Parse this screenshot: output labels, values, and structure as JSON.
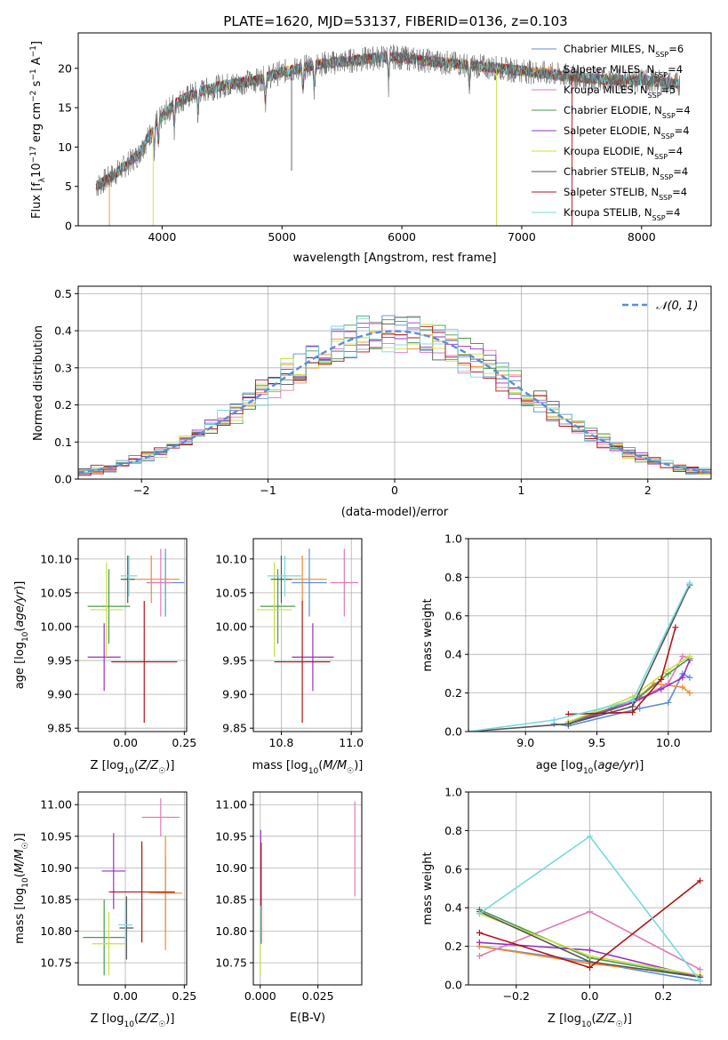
{
  "title": "PLATE=1620, MJD=53137, FIBERID=0136, z=0.103",
  "colors": {
    "Chabrier MILES": "#5b8ed6",
    "Salpeter MILES": "#f08a2c",
    "Kroupa MILES": "#e07ab8",
    "Chabrier ELODIE": "#4a9a4a",
    "Salpeter ELODIE": "#9a2ec0",
    "Kroupa ELODIE": "#c8e040",
    "Chabrier STELIB": "#555555",
    "Salpeter STELIB": "#b01515",
    "Kroupa STELIB": "#78d8e0"
  },
  "chart_data": [
    {
      "type": "line",
      "id": "spectrum",
      "title": "PLATE=1620, MJD=53137, FIBERID=0136, z=0.103",
      "xlabel": "wavelength [Angstrom, rest frame]",
      "ylabel": "Flux [f_λ 10^-17 erg cm^-2 s^-1 A^-1]",
      "xlim": [
        3300,
        8580
      ],
      "ylim": [
        0,
        24.5
      ],
      "xticks": [
        "4000",
        "5000",
        "6000",
        "7000",
        "8000"
      ],
      "yticks": [
        "0",
        "5",
        "10",
        "15",
        "20"
      ],
      "legend_position": "right",
      "legend": [
        {
          "base": "Chabrier MILES, N",
          "sub": "SSP",
          "val": "=6"
        },
        {
          "base": "Salpeter MILES, N",
          "sub": "SSP",
          "val": "=4"
        },
        {
          "base": "Kroupa MILES, N",
          "sub": "SSP",
          "val": "=5"
        },
        {
          "base": "Chabrier ELODIE, N",
          "sub": "SSP",
          "val": "=4"
        },
        {
          "base": "Salpeter ELODIE, N",
          "sub": "SSP",
          "val": "=4"
        },
        {
          "base": "Kroupa ELODIE, N",
          "sub": "SSP",
          "val": "=4"
        },
        {
          "base": "Chabrier STELIB, N",
          "sub": "SSP",
          "val": "=4"
        },
        {
          "base": "Salpeter STELIB, N",
          "sub": "SSP",
          "val": "=4"
        },
        {
          "base": "Kroupa STELIB, N",
          "sub": "SSP",
          "val": "=4"
        }
      ],
      "data_trace": {
        "x": [
          3450,
          3600,
          3800,
          3950,
          4100,
          4300,
          4500,
          4800,
          5000,
          5300,
          5600,
          5900,
          6200,
          6500,
          6800,
          7100,
          7400,
          7700,
          8000,
          8300
        ],
        "y": [
          5.0,
          6.5,
          9.0,
          13.0,
          15.5,
          17.0,
          17.8,
          18.5,
          19.5,
          20.5,
          21.0,
          21.5,
          21.0,
          20.5,
          20.0,
          19.5,
          19.0,
          18.5,
          18.5,
          18.0
        ]
      }
    },
    {
      "type": "histogram",
      "id": "residuals",
      "xlabel": "(data-model)/error",
      "ylabel": "Normed distribution",
      "xlim": [
        -2.5,
        2.5
      ],
      "ylim": [
        0,
        0.52
      ],
      "xticks": [
        "−2",
        "−1",
        "0",
        "1",
        "2"
      ],
      "yticks": [
        "0.0",
        "0.1",
        "0.2",
        "0.3",
        "0.4",
        "0.5"
      ],
      "legend": "𝒩(0, 1)",
      "legend_position": "top-right",
      "reference_curve": "N(0,1)",
      "bin_edges_start": -2.5,
      "bin_width": 0.1
    },
    {
      "type": "scatter",
      "id": "age_vs_Z",
      "xlabel": "Z [log10(Z/Z☉)]",
      "ylabel": "age [log10(age/yr)]",
      "xlim": [
        -0.2,
        0.26
      ],
      "ylim": [
        9.845,
        10.13
      ],
      "xticks": [
        "0.00",
        "0.25"
      ],
      "yticks": [
        "9.85",
        "9.90",
        "9.95",
        "10.00",
        "10.05",
        "10.10"
      ],
      "points": [
        {
          "model": "Chabrier MILES",
          "x": 0.17,
          "y": 10.065,
          "xerr": 0.08,
          "yerr": 0.05
        },
        {
          "model": "Salpeter MILES",
          "x": 0.11,
          "y": 10.07,
          "xerr": 0.12,
          "yerr": 0.035
        },
        {
          "model": "Kroupa MILES",
          "x": 0.15,
          "y": 10.065,
          "xerr": 0.05,
          "yerr": 0.05
        },
        {
          "model": "Chabrier ELODIE",
          "x": -0.07,
          "y": 10.03,
          "xerr": 0.09,
          "yerr": 0.055
        },
        {
          "model": "Salpeter ELODIE",
          "x": -0.09,
          "y": 9.955,
          "xerr": 0.07,
          "yerr": 0.05
        },
        {
          "model": "Kroupa ELODIE",
          "x": -0.08,
          "y": 10.025,
          "xerr": 0.07,
          "yerr": 0.07
        },
        {
          "model": "Chabrier STELIB",
          "x": 0.01,
          "y": 10.07,
          "xerr": 0.03,
          "yerr": 0.035
        },
        {
          "model": "Salpeter STELIB",
          "x": 0.08,
          "y": 9.948,
          "xerr": 0.14,
          "yerr": 0.09
        },
        {
          "model": "Kroupa STELIB",
          "x": 0.015,
          "y": 10.075,
          "xerr": 0.035,
          "yerr": 0.03
        }
      ]
    },
    {
      "type": "scatter",
      "id": "age_vs_mass",
      "xlabel": "mass [log10(M/M☉)]",
      "ylabel": "",
      "xlim": [
        10.72,
        11.03
      ],
      "ylim": [
        9.845,
        10.13
      ],
      "xticks": [
        "10.8",
        "11.0"
      ],
      "yticks": [
        "9.85",
        "9.90",
        "9.95",
        "10.00",
        "10.05",
        "10.10"
      ],
      "points": [
        {
          "model": "Chabrier MILES",
          "x": 10.88,
          "y": 10.065,
          "xerr": 0.05,
          "yerr": 0.05
        },
        {
          "model": "Salpeter MILES",
          "x": 10.86,
          "y": 10.07,
          "xerr": 0.07,
          "yerr": 0.035
        },
        {
          "model": "Kroupa MILES",
          "x": 10.98,
          "y": 10.065,
          "xerr": 0.04,
          "yerr": 0.05
        },
        {
          "model": "Chabrier ELODIE",
          "x": 10.79,
          "y": 10.03,
          "xerr": 0.05,
          "yerr": 0.055
        },
        {
          "model": "Salpeter ELODIE",
          "x": 10.89,
          "y": 9.955,
          "xerr": 0.06,
          "yerr": 0.05
        },
        {
          "model": "Kroupa ELODIE",
          "x": 10.78,
          "y": 10.025,
          "xerr": 0.05,
          "yerr": 0.07
        },
        {
          "model": "Chabrier STELIB",
          "x": 10.8,
          "y": 10.07,
          "xerr": 0.03,
          "yerr": 0.035
        },
        {
          "model": "Salpeter STELIB",
          "x": 10.86,
          "y": 9.948,
          "xerr": 0.08,
          "yerr": 0.09
        },
        {
          "model": "Kroupa STELIB",
          "x": 10.81,
          "y": 10.075,
          "xerr": 0.05,
          "yerr": 0.03
        }
      ]
    },
    {
      "type": "line",
      "id": "massweight_vs_age",
      "xlabel": "age  [log10(age/yr)]",
      "ylabel": "mass weight",
      "xlim": [
        8.6,
        10.3
      ],
      "ylim": [
        0,
        1.0
      ],
      "xticks": [
        "9.0",
        "9.5",
        "10.0"
      ],
      "yticks": [
        "0.0",
        "0.2",
        "0.4",
        "0.6",
        "0.8",
        "1.0"
      ],
      "series": [
        {
          "model": "Chabrier MILES",
          "x": [
            9.2,
            9.3,
            9.8,
            10.0,
            10.1,
            10.15
          ],
          "y": [
            0.04,
            0.03,
            0.12,
            0.15,
            0.3,
            0.28
          ]
        },
        {
          "model": "Salpeter MILES",
          "x": [
            9.3,
            9.75,
            9.9,
            10.1,
            10.15
          ],
          "y": [
            0.04,
            0.15,
            0.25,
            0.23,
            0.2
          ]
        },
        {
          "model": "Kroupa MILES",
          "x": [
            9.3,
            9.8,
            10.0,
            10.1,
            10.15
          ],
          "y": [
            0.05,
            0.17,
            0.25,
            0.39,
            0.38
          ]
        },
        {
          "model": "Chabrier ELODIE",
          "x": [
            9.3,
            9.6,
            9.8,
            10.0,
            10.15
          ],
          "y": [
            0.05,
            0.12,
            0.18,
            0.3,
            0.38
          ]
        },
        {
          "model": "Salpeter ELODIE",
          "x": [
            9.3,
            9.75,
            9.95,
            10.1,
            10.15
          ],
          "y": [
            0.04,
            0.15,
            0.22,
            0.28,
            0.37
          ]
        },
        {
          "model": "Kroupa ELODIE",
          "x": [
            9.3,
            9.75,
            10.0,
            10.15
          ],
          "y": [
            0.05,
            0.18,
            0.32,
            0.39
          ]
        },
        {
          "model": "Chabrier STELIB",
          "x": [
            8.6,
            9.3,
            9.75,
            10.15
          ],
          "y": [
            0.0,
            0.04,
            0.13,
            0.76
          ]
        },
        {
          "model": "Salpeter STELIB",
          "x": [
            9.3,
            9.75,
            9.95,
            10.05
          ],
          "y": [
            0.09,
            0.1,
            0.27,
            0.54
          ]
        },
        {
          "model": "Kroupa STELIB",
          "x": [
            8.6,
            9.2,
            9.75,
            10.15
          ],
          "y": [
            0.0,
            0.06,
            0.16,
            0.77
          ]
        }
      ]
    },
    {
      "type": "scatter",
      "id": "mass_vs_Z",
      "xlabel": "Z [log10(Z/Z☉)]",
      "ylabel": "mass [log10(M/M☉)]",
      "xlim": [
        -0.2,
        0.26
      ],
      "ylim": [
        10.715,
        11.02
      ],
      "xticks": [
        "0.00",
        "0.25"
      ],
      "yticks": [
        "10.75",
        "10.80",
        "10.85",
        "10.90",
        "10.95",
        "11.00"
      ],
      "points": [
        {
          "model": "Chabrier MILES",
          "x": 0.17,
          "y": 10.86,
          "xerr": 0.04,
          "yerr": 0.06
        },
        {
          "model": "Salpeter MILES",
          "x": 0.17,
          "y": 10.86,
          "xerr": 0.07,
          "yerr": 0.09
        },
        {
          "model": "Kroupa MILES",
          "x": 0.15,
          "y": 10.98,
          "xerr": 0.08,
          "yerr": 0.03
        },
        {
          "model": "Chabrier ELODIE",
          "x": -0.09,
          "y": 10.79,
          "xerr": 0.09,
          "yerr": 0.06
        },
        {
          "model": "Salpeter ELODIE",
          "x": -0.05,
          "y": 10.895,
          "xerr": 0.05,
          "yerr": 0.06
        },
        {
          "model": "Kroupa ELODIE",
          "x": -0.07,
          "y": 10.78,
          "xerr": 0.07,
          "yerr": 0.05
        },
        {
          "model": "Chabrier STELIB",
          "x": 0.005,
          "y": 10.805,
          "xerr": 0.03,
          "yerr": 0.05
        },
        {
          "model": "Salpeter STELIB",
          "x": 0.07,
          "y": 10.862,
          "xerr": 0.14,
          "yerr": 0.08
        },
        {
          "model": "Kroupa STELIB",
          "x": 0.0,
          "y": 10.81,
          "xerr": 0.03,
          "yerr": 0.03
        }
      ]
    },
    {
      "type": "scatter",
      "id": "mass_vs_ebv",
      "xlabel": "E(B-V)",
      "ylabel": "",
      "xlim": [
        -0.003,
        0.044
      ],
      "ylim": [
        10.715,
        11.02
      ],
      "xticks": [
        "0.000",
        "0.025"
      ],
      "yticks": [
        "10.75",
        "10.80",
        "10.85",
        "10.90",
        "10.95",
        "11.00"
      ],
      "points": [
        {
          "model": "Kroupa MILES",
          "x": 0.041,
          "y": 10.93,
          "yerr": 0.075
        },
        {
          "model": "Salpeter ELODIE",
          "x": 0.0002,
          "y": 10.89,
          "yerr": 0.07
        },
        {
          "model": "Salpeter STELIB",
          "x": 0.0004,
          "y": 10.86,
          "yerr": 0.08
        },
        {
          "model": "Kroupa ELODIE",
          "x": 0.0,
          "y": 10.78,
          "yerr": 0.05
        },
        {
          "model": "Kroupa STELIB",
          "x": 0.0001,
          "y": 10.81,
          "yerr": 0.03
        }
      ]
    },
    {
      "type": "line",
      "id": "massweight_vs_Z",
      "xlabel": "Z [log10(Z/Z☉)]",
      "ylabel": "mass weight",
      "xlim": [
        -0.33,
        0.33
      ],
      "ylim": [
        0,
        1.0
      ],
      "xticks": [
        "−0.2",
        "0.0",
        "0.2"
      ],
      "yticks": [
        "0.0",
        "0.2",
        "0.4",
        "0.6",
        "0.8",
        "1.0"
      ],
      "series": [
        {
          "model": "Chabrier MILES",
          "x": [
            -0.3,
            0.0,
            0.3
          ],
          "y": [
            0.2,
            0.12,
            0.02
          ]
        },
        {
          "model": "Salpeter MILES",
          "x": [
            -0.3,
            0.0,
            0.3
          ],
          "y": [
            0.2,
            0.11,
            0.05
          ]
        },
        {
          "model": "Kroupa MILES",
          "x": [
            -0.3,
            0.0,
            0.3
          ],
          "y": [
            0.15,
            0.38,
            0.08
          ]
        },
        {
          "model": "Chabrier ELODIE",
          "x": [
            -0.3,
            0.0,
            0.3
          ],
          "y": [
            0.39,
            0.14,
            0.04
          ]
        },
        {
          "model": "Salpeter ELODIE",
          "x": [
            -0.3,
            0.0,
            0.3
          ],
          "y": [
            0.22,
            0.18,
            0.04
          ]
        },
        {
          "model": "Kroupa ELODIE",
          "x": [
            -0.3,
            0.0,
            0.3
          ],
          "y": [
            0.37,
            0.15,
            0.05
          ]
        },
        {
          "model": "Chabrier STELIB",
          "x": [
            -0.3,
            0.0,
            0.3
          ],
          "y": [
            0.38,
            0.12,
            0.04
          ]
        },
        {
          "model": "Salpeter STELIB",
          "x": [
            -0.3,
            0.0,
            0.3
          ],
          "y": [
            0.27,
            0.09,
            0.54
          ]
        },
        {
          "model": "Kroupa STELIB",
          "x": [
            -0.3,
            0.0,
            0.3
          ],
          "y": [
            0.37,
            0.77,
            0.02
          ]
        }
      ]
    }
  ]
}
